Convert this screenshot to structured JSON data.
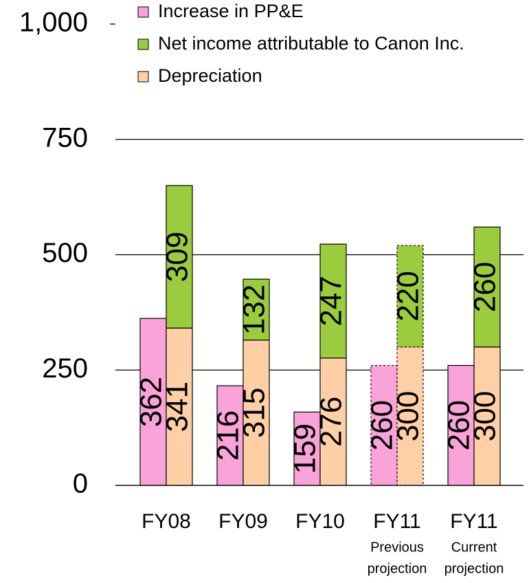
{
  "chart_data": {
    "type": "stacked_bar_groups",
    "categories": [
      "FY08",
      "FY09",
      "FY10",
      "FY11",
      "FY11"
    ],
    "sublabels": [
      [],
      [],
      [],
      [
        "Previous",
        "projection"
      ],
      [
        "Current",
        "projection"
      ]
    ],
    "outline": [
      "solid",
      "solid",
      "solid",
      "dotted",
      "solid"
    ],
    "series": [
      {
        "name": "Increase in PP&E",
        "color": "#f9a3d9",
        "stack": "left",
        "values": [
          362,
          216,
          159,
          260,
          260
        ]
      },
      {
        "name": "Net income attributable to Canon Inc.",
        "color": "#9bcc3e",
        "stack": "right",
        "values": [
          309,
          132,
          247,
          220,
          260
        ]
      },
      {
        "name": "Depreciation",
        "color": "#ffd0a6",
        "stack": "right",
        "values": [
          341,
          315,
          276,
          300,
          300
        ]
      }
    ],
    "ylim": [
      0,
      1000
    ],
    "yticks": [
      0,
      250,
      500,
      750,
      {
        "value": 1000,
        "label": "1,000"
      }
    ],
    "grid": true,
    "legend": "top"
  }
}
